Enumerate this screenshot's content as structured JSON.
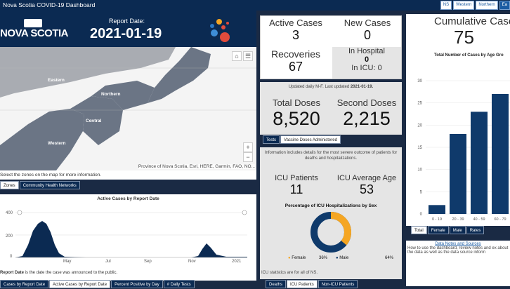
{
  "app_title": "Nova Scotia COVID-19 Dashboard",
  "zone_buttons": [
    "NS",
    "Western",
    "Northern",
    "Ea"
  ],
  "header": {
    "logo_text": "NOVA SCOTIA",
    "report_label": "Report Date:",
    "report_date": "2021-01-19"
  },
  "map": {
    "zones": [
      "Eastern",
      "Northern",
      "Central",
      "Western"
    ],
    "attribution": "Province of Nova Scotia, Esri, HERE, Garmin, FAO, NO...",
    "hint": "Select the zones on the map for more information.",
    "tabs": [
      "Zones",
      "Community Health Networks"
    ]
  },
  "active_chart": {
    "title": "Active Cases by Report Date",
    "y_ticks": [
      "400",
      "200",
      "0"
    ],
    "x_ticks": [
      "May",
      "Jul",
      "Sep",
      "Nov",
      "2021"
    ],
    "footnote_bold": "Report Date",
    "footnote_rest": " is the date the case was announced to the public."
  },
  "bottom_tabs": [
    "Cases by Report Date",
    "Active Cases by Report Date",
    "Percent Positive by Day",
    "# Daily Tests"
  ],
  "cases": {
    "active_label": "Active Cases",
    "active_value": "3",
    "new_label": "New Cases",
    "new_value": "0",
    "recoveries_label": "Recoveries",
    "recoveries_value": "67",
    "hospital_label": "In Hospital",
    "hospital_value": "0",
    "icu_label": "In ICU: 0"
  },
  "vaccine": {
    "updated_text": "Updated daily M-F.  Last updated ",
    "updated_date": "2021-01-19.",
    "total_label": "Total Doses",
    "total_value": "8,520",
    "second_label": "Second Doses",
    "second_value": "2,215",
    "tabs": [
      "Tests",
      "Vaccine Doses Administered"
    ]
  },
  "icu": {
    "intro": "Information includes details for the most severe outcome of patients for deaths and hospitalizations.",
    "patients_label": "ICU Patients",
    "patients_value": "11",
    "age_label": "ICU Average Age",
    "age_value": "53",
    "sex_title": "Percentage of ICU Hospitalizations by Sex",
    "female_label": "Female",
    "female_pct": "36%",
    "male_label": "Male",
    "male_pct": "64%",
    "female_share": 36,
    "footnote": "ICU statistics are for all of NS.",
    "tabs": [
      "Deaths",
      "ICU Patients",
      "Non-ICU Patients"
    ]
  },
  "cumulative": {
    "label": "Cumulative Case",
    "value": "75",
    "chart_title": "Total Number of Cases by Age Gro",
    "tabs": [
      "Total",
      "Female",
      "Male",
      "Rates"
    ]
  },
  "notes": {
    "link": "Data Notes and Sources",
    "text": "How to use the dashboard, review notes and ex about the data as well as the data source inform"
  },
  "colors": {
    "navy": "#0b2a52",
    "bar": "#0f3a6b",
    "female": "#f5a623",
    "male": "#0f3a6b"
  },
  "chart_data": {
    "type": "bar",
    "categories": [
      "0 - 19",
      "20 - 39",
      "40 - 59",
      "60 - 79"
    ],
    "values": [
      2,
      18,
      23,
      27
    ],
    "title": "Total Number of Cases by Age Gro",
    "ylim": [
      0,
      30
    ],
    "y_ticks": [
      0,
      5,
      10,
      15,
      20,
      25,
      30
    ]
  }
}
